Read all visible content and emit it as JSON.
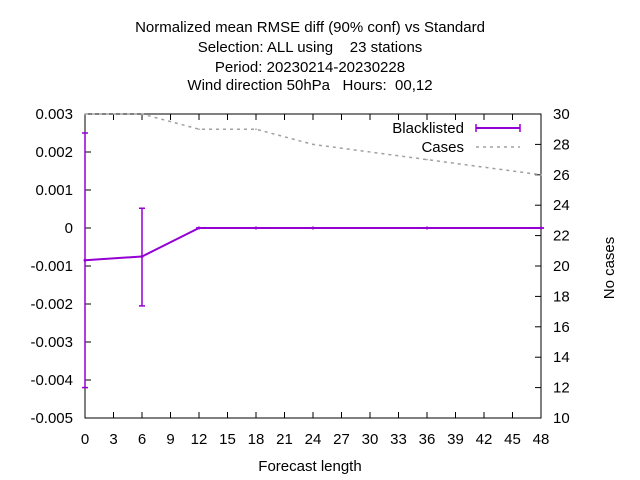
{
  "chart_data": {
    "type": "line",
    "title_lines": [
      "Normalized mean RMSE diff (90% conf) vs Standard",
      "Selection: ALL using    23 stations",
      "Period: 20230214-20230228",
      "Wind direction 50hPa   Hours:  00,12"
    ],
    "xlabel": "Forecast length",
    "ylabel": "",
    "y2label": "No cases",
    "xlim": [
      0,
      48
    ],
    "ylim": [
      -0.005,
      0.003
    ],
    "y2lim": [
      10,
      30
    ],
    "x_ticks": [
      "0",
      "3",
      "6",
      "9",
      "12",
      "15",
      "18",
      "21",
      "24",
      "27",
      "30",
      "33",
      "36",
      "39",
      "42",
      "45",
      "48"
    ],
    "y_ticks": [
      "0.003",
      "0.002",
      "0.001",
      "0",
      "-0.001",
      "-0.002",
      "-0.003",
      "-0.004",
      "-0.005"
    ],
    "y2_ticks": [
      "30",
      "28",
      "26",
      "24",
      "22",
      "20",
      "18",
      "16",
      "14",
      "12",
      "10"
    ],
    "legend_position": "top-right",
    "grid": false,
    "series": [
      {
        "name": "Blacklisted",
        "axis": "y",
        "color": "#9400d3",
        "style": "errorbars-line",
        "x": [
          0,
          6,
          12,
          18,
          24,
          36,
          48
        ],
        "values": [
          -0.00085,
          -0.00075,
          0.0,
          0.0,
          0.0,
          0.0,
          0.0
        ],
        "err_low": [
          -0.0042,
          -0.00205,
          0.0,
          0.0,
          0.0,
          0.0,
          0.0
        ],
        "err_high": [
          0.0025,
          0.00052,
          0.0,
          0.0,
          0.0,
          0.0,
          0.0
        ]
      },
      {
        "name": "Cases",
        "axis": "y2",
        "color": "#a0a0a0",
        "style": "dashed",
        "x": [
          0,
          6,
          12,
          18,
          24,
          36,
          48
        ],
        "values": [
          30,
          30,
          29,
          29,
          28,
          27,
          26
        ]
      }
    ]
  }
}
